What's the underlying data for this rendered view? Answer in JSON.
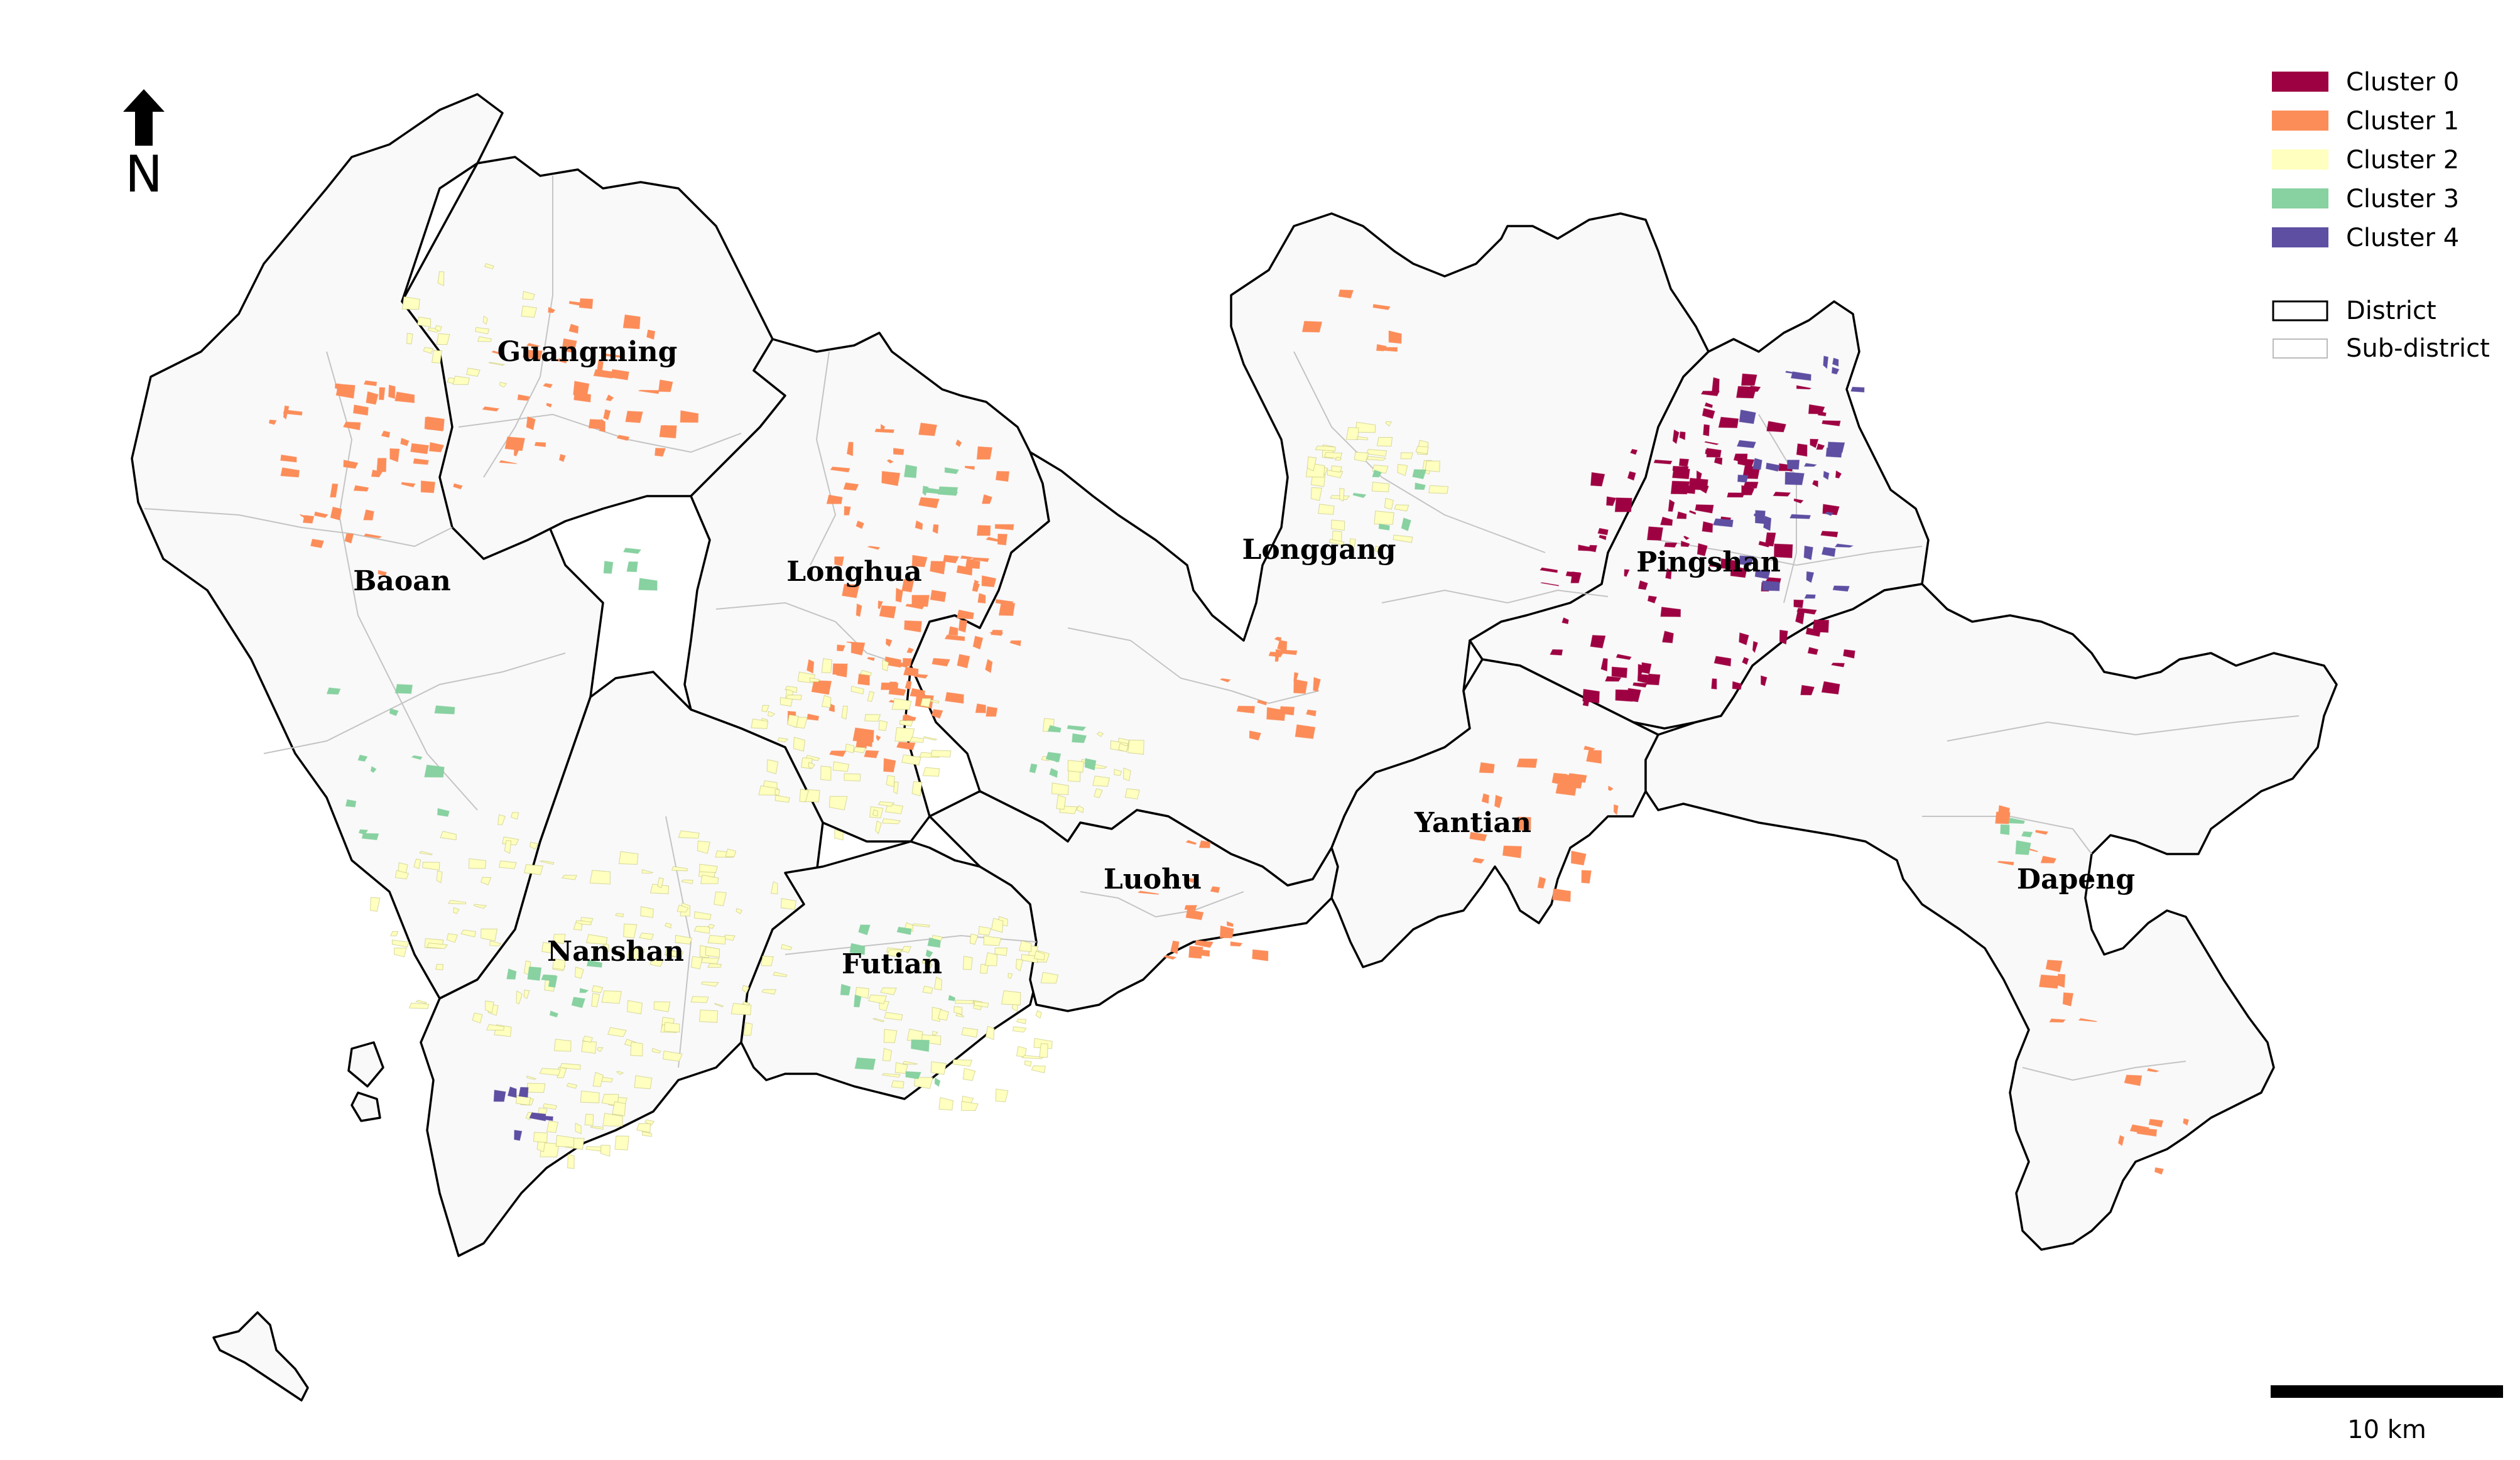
{
  "map": {
    "north_label": "N",
    "scale_label": "10 km",
    "districts": [
      {
        "id": "baoan",
        "label": "Baoan"
      },
      {
        "id": "guangming",
        "label": "Guangming"
      },
      {
        "id": "longhua",
        "label": "Longhua"
      },
      {
        "id": "longgang",
        "label": "Longgang"
      },
      {
        "id": "pingshan",
        "label": "Pingshan"
      },
      {
        "id": "nanshan",
        "label": "Nanshan"
      },
      {
        "id": "futian",
        "label": "Futian"
      },
      {
        "id": "luohu",
        "label": "Luohu"
      },
      {
        "id": "yantian",
        "label": "Yantian"
      },
      {
        "id": "dapeng",
        "label": "Dapeng"
      }
    ]
  },
  "legend": {
    "clusters": [
      {
        "label": "Cluster 0",
        "color": "#9e0142"
      },
      {
        "label": "Cluster 1",
        "color": "#fc8d59"
      },
      {
        "label": "Cluster 2",
        "color": "#ffffbf"
      },
      {
        "label": "Cluster 3",
        "color": "#88d1a1"
      },
      {
        "label": "Cluster 4",
        "color": "#5e4fa2"
      }
    ],
    "boundaries": [
      {
        "label": "District"
      },
      {
        "label": "Sub-district"
      }
    ]
  }
}
